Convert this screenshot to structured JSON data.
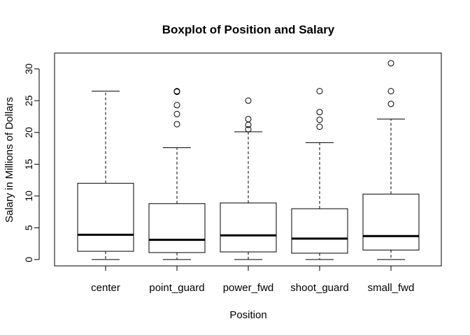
{
  "chart_data": {
    "type": "boxplot",
    "title": "Boxplot of Position and Salary",
    "xlabel": "Position",
    "ylabel": "Salary in Millions of Dollars",
    "ylim": [
      -1,
      32.5
    ],
    "yticks": [
      0,
      5,
      10,
      15,
      20,
      25,
      30
    ],
    "grid": false,
    "categories": [
      "center",
      "point_guard",
      "power_fwd",
      "shoot_guard",
      "small_fwd"
    ],
    "series": [
      {
        "category": "center",
        "min": 0.0,
        "q1": 1.3,
        "median": 3.9,
        "q3": 12.0,
        "max": 26.5,
        "outliers": []
      },
      {
        "category": "point_guard",
        "min": 0.0,
        "q1": 1.1,
        "median": 3.1,
        "q3": 8.8,
        "max": 17.6,
        "outliers": [
          21.3,
          22.9,
          24.3,
          26.4,
          26.5
        ]
      },
      {
        "category": "power_fwd",
        "min": 0.0,
        "q1": 1.2,
        "median": 3.8,
        "q3": 8.9,
        "max": 20.1,
        "outliers": [
          20.5,
          21.2,
          22.1,
          25.0
        ]
      },
      {
        "category": "shoot_guard",
        "min": 0.0,
        "q1": 1.0,
        "median": 3.3,
        "q3": 8.0,
        "max": 18.4,
        "outliers": [
          20.9,
          22.0,
          23.2,
          26.5
        ]
      },
      {
        "category": "small_fwd",
        "min": 0.0,
        "q1": 1.5,
        "median": 3.7,
        "q3": 10.3,
        "max": 22.1,
        "outliers": [
          24.5,
          26.5,
          30.9
        ]
      }
    ]
  }
}
